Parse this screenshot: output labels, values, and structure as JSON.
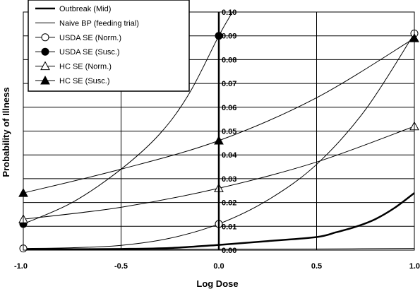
{
  "chart_data": {
    "type": "line",
    "xlabel": "Log Dose",
    "ylabel": "Probability of Illness",
    "xlim": [
      -1.0,
      1.0
    ],
    "ylim": [
      0.0,
      0.1
    ],
    "x_ticks": [
      "-1.0",
      "-0.5",
      "0.0",
      "0.5",
      "1.0"
    ],
    "y_ticks": [
      "0.00",
      "0.01",
      "0.02",
      "0.03",
      "0.04",
      "0.05",
      "0.06",
      "0.07",
      "0.08",
      "0.09",
      "0.10"
    ],
    "grid": "horizontal and vertical",
    "legend_position": "top-left",
    "series": [
      {
        "name": "Outbreak (Mid)",
        "marker": "none",
        "line": "thick",
        "x": [
          -1.0,
          -0.75,
          -0.5,
          -0.25,
          0.0,
          0.25,
          0.5,
          0.6,
          0.7,
          0.8,
          0.9,
          1.0
        ],
        "y": [
          0.0003,
          0.0004,
          0.0005,
          0.0009,
          0.0022,
          0.0038,
          0.0055,
          0.0075,
          0.0098,
          0.013,
          0.0178,
          0.024
        ]
      },
      {
        "name": "Naive BP (feeding trial)",
        "marker": "none",
        "line": "thin",
        "x": [
          -1.0,
          -0.5,
          0.0,
          0.5,
          1.0
        ],
        "y": [
          0.0002,
          0.0003,
          0.0004,
          0.0005,
          0.0007
        ]
      },
      {
        "name": "USDA SE (Norm.)",
        "marker": "open-circle",
        "line": "thin",
        "x": [
          -1.0,
          -0.75,
          -0.5,
          -0.25,
          0.0,
          0.25,
          0.5,
          0.75,
          1.0
        ],
        "y": [
          0.0007,
          0.001,
          0.002,
          0.005,
          0.011,
          0.021,
          0.036,
          0.059,
          0.091
        ]
      },
      {
        "name": "USDA SE (Susc.)",
        "marker": "filled-circle",
        "line": "thin",
        "x": [
          -1.0,
          -0.75,
          -0.5,
          -0.3,
          -0.15,
          0.0,
          0.07
        ],
        "y": [
          0.011,
          0.02,
          0.034,
          0.049,
          0.066,
          0.09,
          0.1
        ]
      },
      {
        "name": "HC SE (Norm.)",
        "marker": "open-triangle",
        "line": "thin",
        "x": [
          -1.0,
          -0.5,
          0.0,
          0.5,
          1.0
        ],
        "y": [
          0.013,
          0.018,
          0.026,
          0.037,
          0.052
        ]
      },
      {
        "name": "HC SE (Susc.)",
        "marker": "filled-triangle",
        "line": "thin",
        "x": [
          -1.0,
          -0.5,
          0.0,
          0.5,
          1.0
        ],
        "y": [
          0.024,
          0.034,
          0.046,
          0.064,
          0.089
        ]
      }
    ]
  }
}
